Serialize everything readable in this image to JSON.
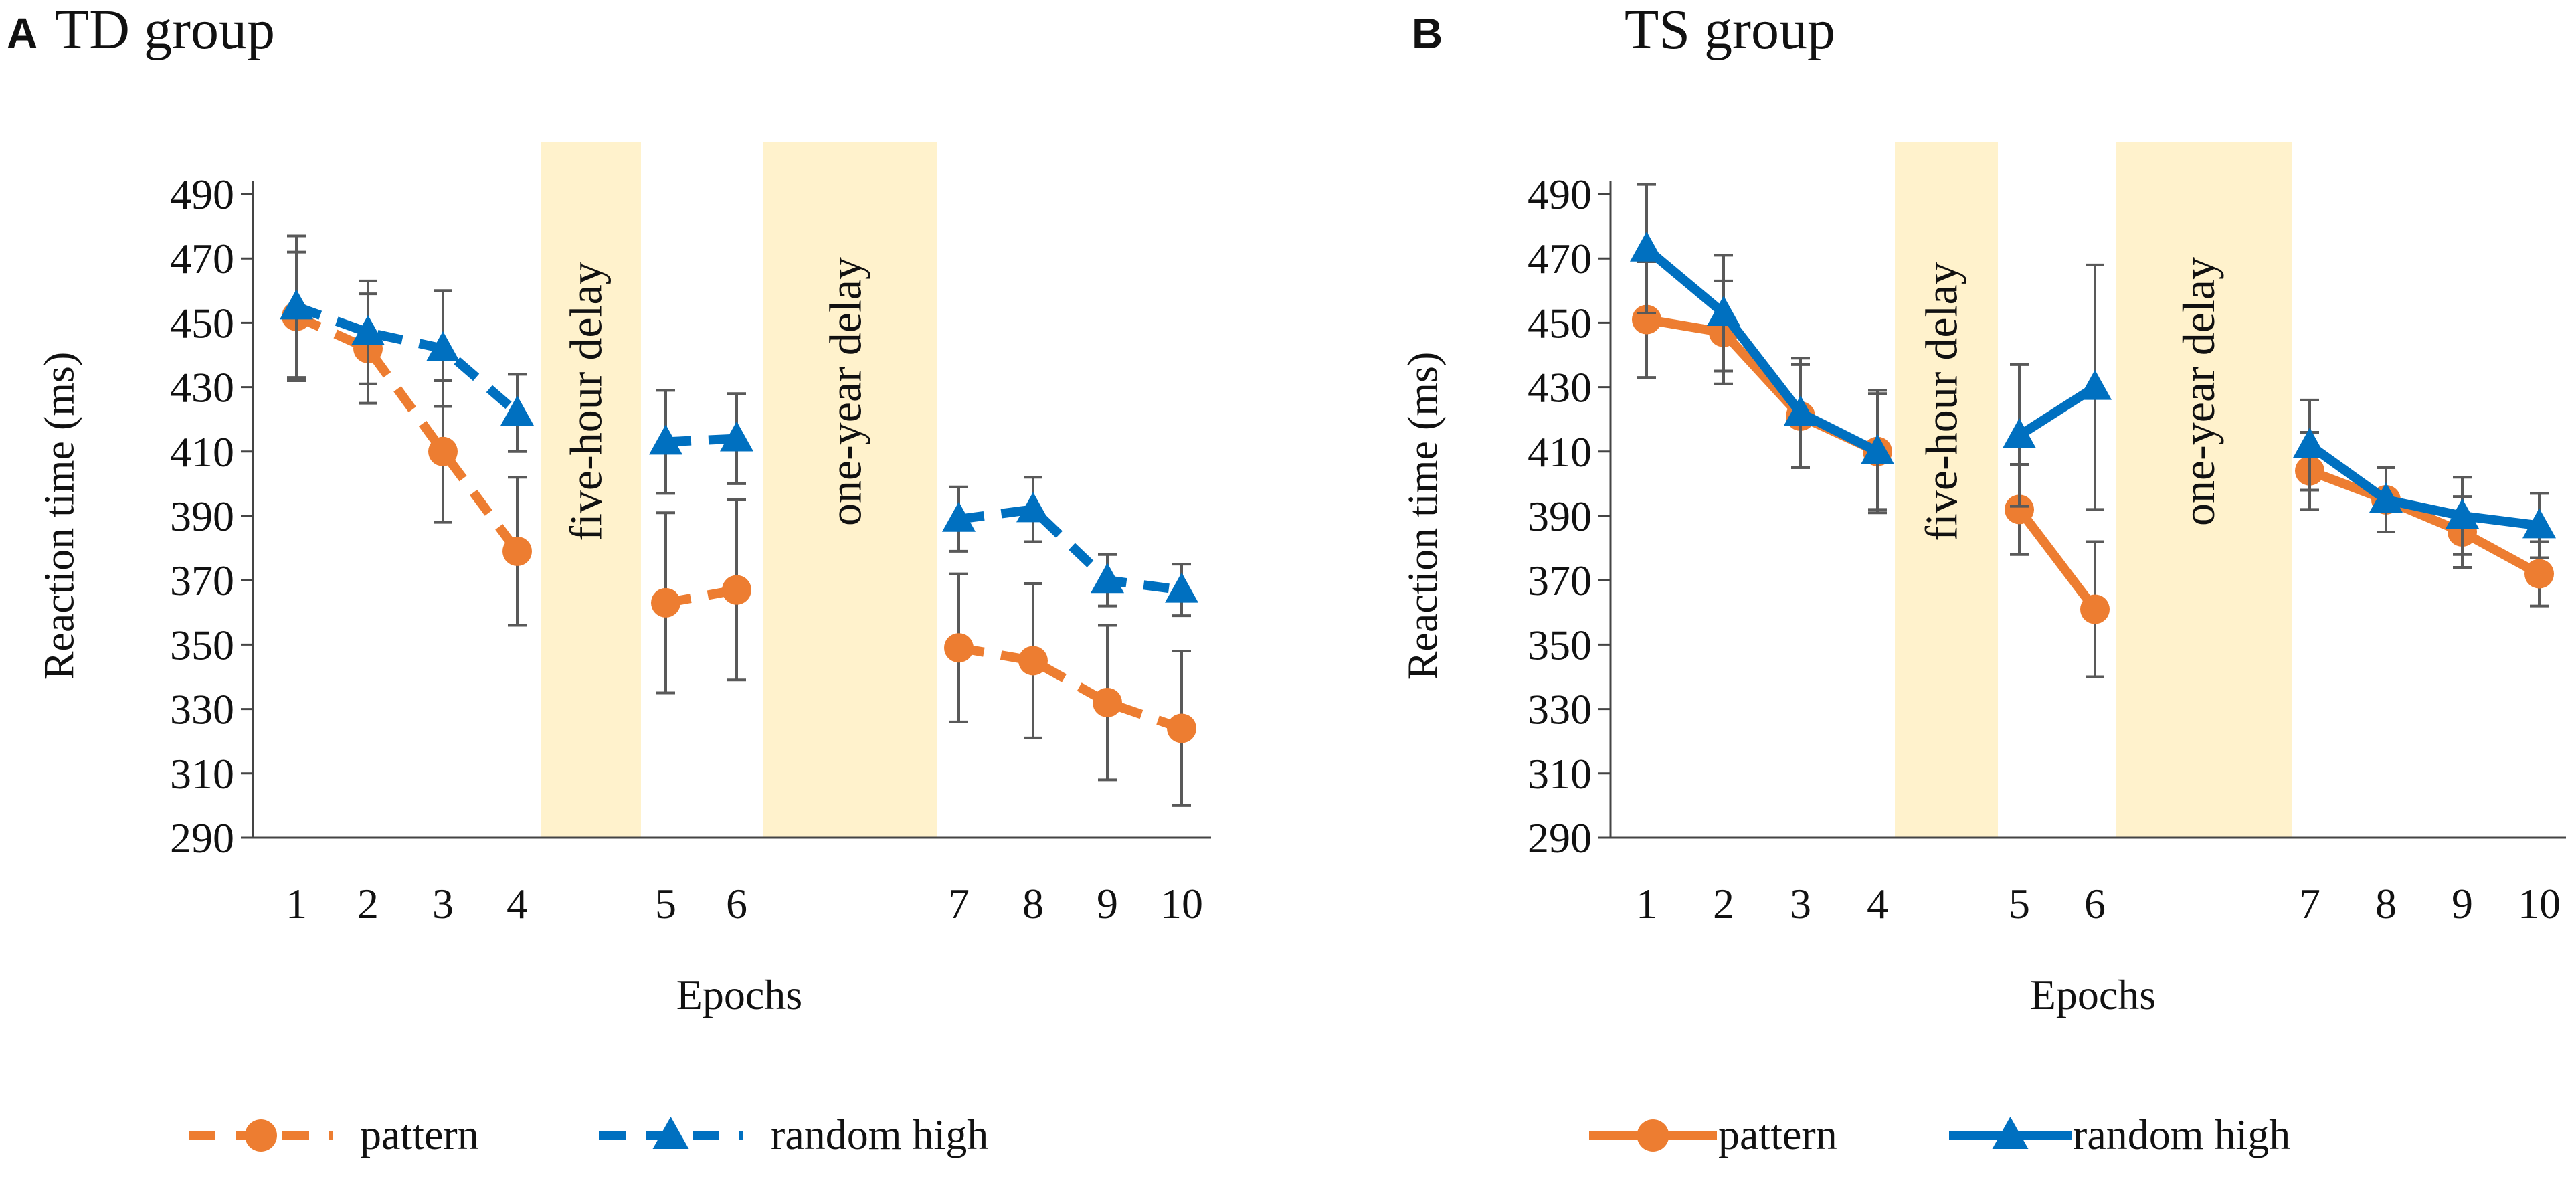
{
  "chart_data": [
    {
      "type": "line",
      "panel_label": "A",
      "title": "TD group",
      "xlabel": "Epochs",
      "ylabel": "Reaction time (ms)",
      "ylim": [
        290,
        490
      ],
      "yticks": [
        290,
        310,
        330,
        350,
        370,
        390,
        410,
        430,
        450,
        470,
        490
      ],
      "categories": [
        "1",
        "2",
        "3",
        "4",
        "5",
        "6",
        "7",
        "8",
        "9",
        "10"
      ],
      "delays": [
        {
          "label": "five-hour delay",
          "between": [
            "4",
            "5"
          ]
        },
        {
          "label": "one-year delay",
          "between": [
            "6",
            "7"
          ]
        }
      ],
      "line_style": "dashed",
      "series": [
        {
          "name": "pattern",
          "marker": "circle",
          "color": "#ED7D31",
          "values": [
            452,
            442,
            410,
            379,
            363,
            367,
            349,
            345,
            332,
            324
          ],
          "errors": [
            20,
            17,
            22,
            23,
            28,
            28,
            23,
            24,
            24,
            24
          ]
        },
        {
          "name": "random high",
          "marker": "triangle",
          "color": "#0070C0",
          "values": [
            455,
            447,
            442,
            422,
            413,
            414,
            389,
            392,
            370,
            367
          ],
          "errors": [
            22,
            16,
            18,
            12,
            16,
            14,
            10,
            10,
            8,
            8
          ]
        }
      ],
      "legend_position": "bottom"
    },
    {
      "type": "line",
      "panel_label": "B",
      "title": "TS group",
      "xlabel": "Epochs",
      "ylabel": "Reaction time (ms)",
      "ylim": [
        290,
        490
      ],
      "yticks": [
        290,
        310,
        330,
        350,
        370,
        390,
        410,
        430,
        450,
        470,
        490
      ],
      "categories": [
        "1",
        "2",
        "3",
        "4",
        "5",
        "6",
        "7",
        "8",
        "9",
        "10"
      ],
      "delays": [
        {
          "label": "five-hour delay",
          "between": [
            "4",
            "5"
          ]
        },
        {
          "label": "one-year delay",
          "between": [
            "6",
            "7"
          ]
        }
      ],
      "line_style": "solid",
      "series": [
        {
          "name": "pattern",
          "marker": "circle",
          "color": "#ED7D31",
          "values": [
            451,
            447,
            421,
            410,
            392,
            361,
            404,
            395,
            385,
            372
          ],
          "errors": [
            18,
            16,
            16,
            18,
            14,
            21,
            12,
            10,
            11,
            10
          ]
        },
        {
          "name": "random high",
          "marker": "triangle",
          "color": "#0070C0",
          "values": [
            473,
            453,
            422,
            410,
            415,
            430,
            412,
            395,
            390,
            387
          ],
          "errors": [
            20,
            18,
            17,
            19,
            22,
            38,
            14,
            10,
            12,
            10
          ]
        }
      ],
      "legend_position": "bottom"
    }
  ]
}
